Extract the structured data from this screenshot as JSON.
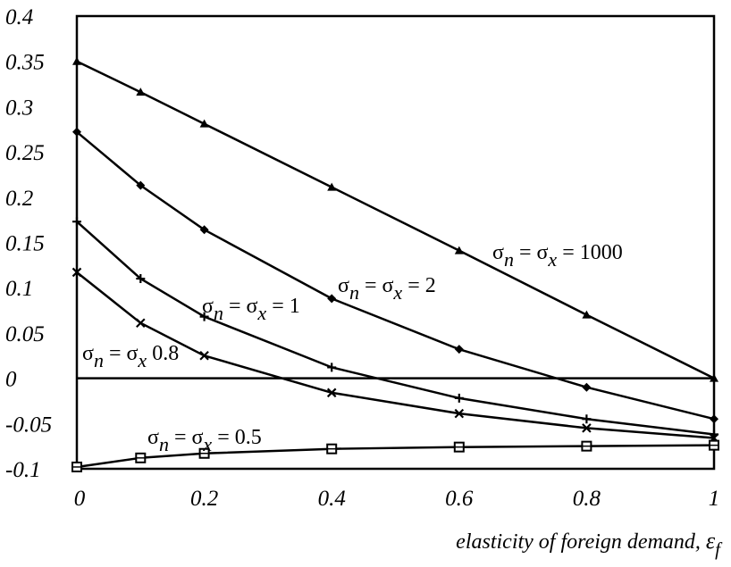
{
  "chart_data": {
    "type": "line",
    "xlabel": "elasticity of foreign demand, ",
    "xlabel_symbol": "ε",
    "xlabel_subscript": "f",
    "xlim": [
      0,
      1
    ],
    "ylim": [
      -0.1,
      0.4
    ],
    "x": [
      0,
      0.1,
      0.2,
      0.4,
      0.6,
      0.8,
      1
    ],
    "xticks": [
      0,
      0.2,
      0.4,
      0.6,
      0.8,
      1
    ],
    "xtick_labels": [
      "0",
      "0.2",
      "0.4",
      "0.6",
      "0.8",
      "1"
    ],
    "yticks": [
      0.4,
      0.35,
      0.3,
      0.25,
      0.2,
      0.15,
      0.1,
      0.05,
      0,
      -0.05,
      -0.1
    ],
    "ytick_labels": [
      "0.4",
      "0.35",
      "0.3",
      "0.25",
      "0.2",
      "0.15",
      "0.1",
      "0.05",
      "0",
      "-0.05",
      "-0.1"
    ],
    "zero_line": true,
    "grid": false,
    "series": [
      {
        "name": "σn = σx = 1000",
        "label_parts": [
          "σ",
          "n",
          " = σ",
          "x",
          " = 1000"
        ],
        "marker": "triangle",
        "values": [
          0.35,
          0.316,
          0.281,
          0.211,
          0.141,
          0.07,
          0.0
        ]
      },
      {
        "name": "σn = σx = 2",
        "label_parts": [
          "σ",
          "n",
          " = σ",
          "x",
          " = 2"
        ],
        "marker": "diamond",
        "values": [
          0.272,
          0.213,
          0.164,
          0.088,
          0.032,
          -0.01,
          -0.045
        ]
      },
      {
        "name": "σn = σx = 1",
        "label_parts": [
          "σ",
          "n",
          " = σ",
          "x",
          " = 1"
        ],
        "marker": "plus",
        "values": [
          0.173,
          0.11,
          0.068,
          0.012,
          -0.022,
          -0.045,
          -0.062
        ]
      },
      {
        "name": "σn = σx = 0.8",
        "label_parts": [
          "σ",
          "n",
          " = σ",
          "x",
          " 0.8"
        ],
        "marker": "cross",
        "values": [
          0.117,
          0.061,
          0.025,
          -0.016,
          -0.039,
          -0.055,
          -0.066
        ]
      },
      {
        "name": "σn = σx = 0.5",
        "label_parts": [
          "σ",
          "n",
          " = σ",
          "x",
          " = 0.5"
        ],
        "marker": "square",
        "values": [
          -0.098,
          -0.088,
          -0.083,
          -0.078,
          -0.076,
          -0.075,
          -0.074
        ]
      }
    ]
  }
}
